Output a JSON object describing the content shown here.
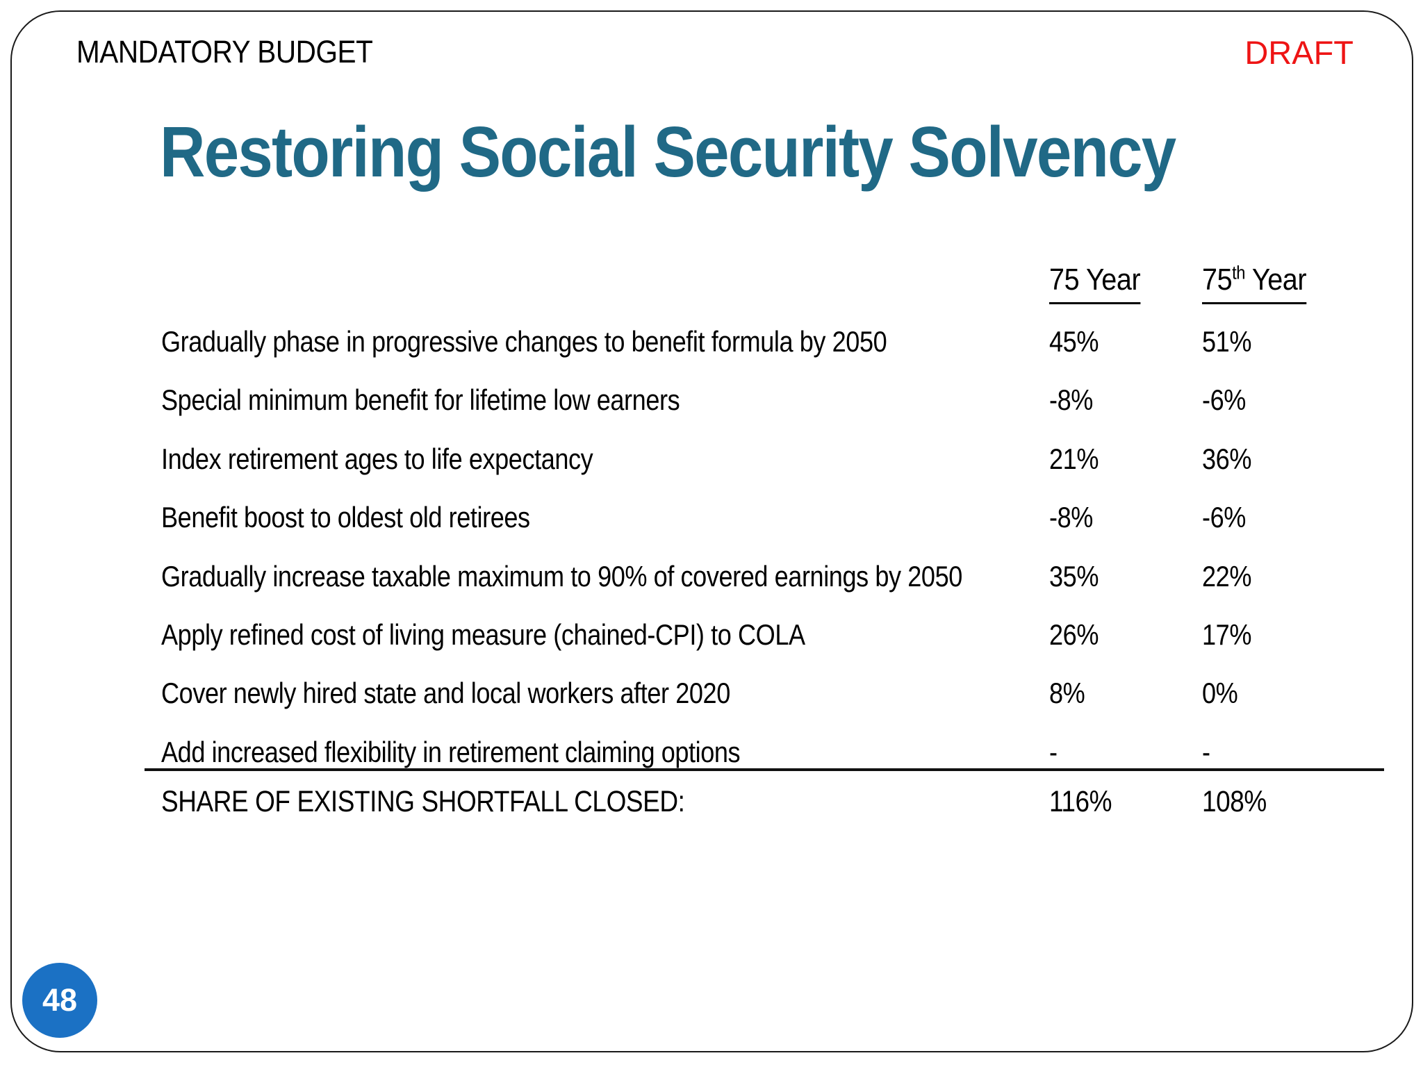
{
  "slide": {
    "header": "MANDATORY BUDGET",
    "watermark": "DRAFT",
    "title": "Restoring Social Security Solvency",
    "page_number": "48"
  },
  "colors": {
    "title_teal": "#206986",
    "draft_red": "#EE1414",
    "page_badge_blue": "#1B71C4",
    "text_black": "#000000"
  },
  "table": {
    "columns": [
      {
        "label": "75 Year"
      },
      {
        "prefix": "75",
        "superscript": "th",
        "suffix": " Year"
      }
    ],
    "rows": [
      {
        "label": "Gradually phase in progressive changes to benefit formula by 2050",
        "y75": "45%",
        "y75th": "51%"
      },
      {
        "label": "Special minimum benefit for lifetime low earners",
        "y75": "-8%",
        "y75th": "-6%"
      },
      {
        "label": "Index retirement ages to life expectancy",
        "y75": "21%",
        "y75th": "36%"
      },
      {
        "label": "Benefit boost to oldest old retirees",
        "y75": "-8%",
        "y75th": "-6%"
      },
      {
        "label": "Gradually increase taxable maximum to 90% of covered earnings by 2050",
        "y75": "35%",
        "y75th": "22%"
      },
      {
        "label": "Apply refined cost of living measure (chained-CPI) to COLA",
        "y75": "26%",
        "y75th": "17%"
      },
      {
        "label": "Cover newly hired state and local workers after 2020",
        "y75": "8%",
        "y75th": "0%"
      },
      {
        "label": "Add increased flexibility in retirement claiming options",
        "y75": "-",
        "y75th": "-"
      }
    ],
    "total": {
      "label": "SHARE OF EXISTING SHORTFALL CLOSED:",
      "y75": "116%",
      "y75th": "108%"
    }
  }
}
